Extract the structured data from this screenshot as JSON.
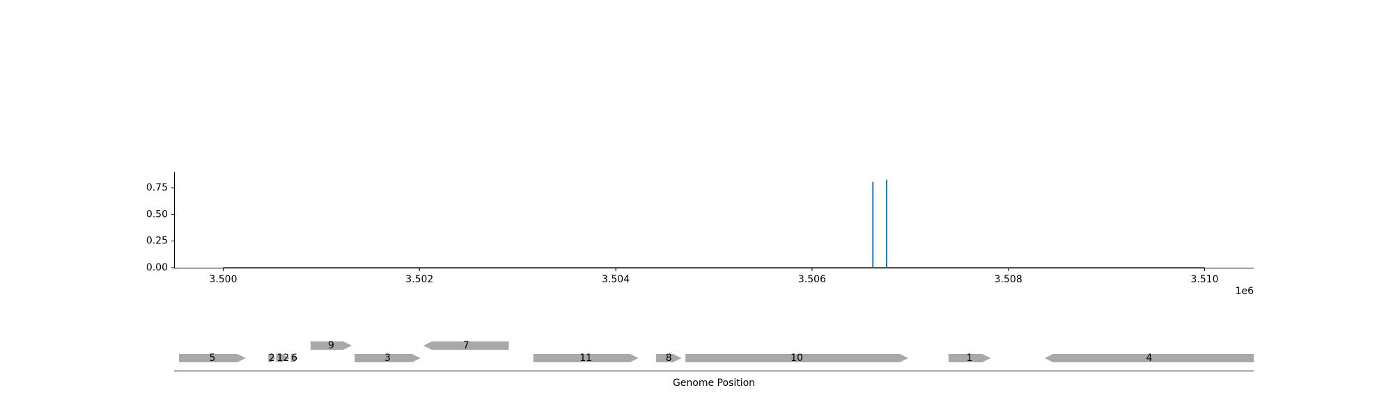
{
  "chart_data": [
    {
      "type": "line",
      "title": "",
      "xlabel": "",
      "ylabel": "",
      "x_offset_label": "1e6",
      "xlim": [
        3499500,
        3510500
      ],
      "ylim": [
        0,
        0.9
      ],
      "x_ticks": [
        3500000,
        3502000,
        3504000,
        3506000,
        3508000,
        3510000
      ],
      "x_tick_labels": [
        "3.500",
        "3.502",
        "3.504",
        "3.506",
        "3.508",
        "3.510"
      ],
      "y_ticks": [
        0,
        0.25,
        0.5,
        0.75
      ],
      "y_tick_labels": [
        "0.00",
        "0.25",
        "0.50",
        "0.75"
      ],
      "grid": false,
      "series": [
        {
          "color": "#1f77b4",
          "x": [
            3500000,
            3506620,
            3506620,
            3506620,
            3506620,
            3506760,
            3506760,
            3506760,
            3506760,
            3510000
          ],
          "y": [
            0,
            0,
            0.8,
            0.8,
            0,
            0,
            0.82,
            0.82,
            0,
            0
          ]
        }
      ]
    },
    {
      "type": "gene_map",
      "xlabel": "Genome Position",
      "xlim": [
        3499500,
        3510500
      ],
      "feature_color": "#a9a9a9",
      "features": [
        {
          "label": "5",
          "start": 3499550,
          "end": 3500230,
          "strand": 1,
          "row": 0
        },
        {
          "label": "2",
          "start": 3500460,
          "end": 3500530,
          "strand": 1,
          "row": 0
        },
        {
          "label": "12",
          "start": 3500540,
          "end": 3500680,
          "strand": 1,
          "row": 0
        },
        {
          "label": "6",
          "start": 3500690,
          "end": 3500760,
          "strand": 1,
          "row": 0
        },
        {
          "label": "9",
          "start": 3500890,
          "end": 3501310,
          "strand": 1,
          "row": 1
        },
        {
          "label": "3",
          "start": 3501340,
          "end": 3502010,
          "strand": 1,
          "row": 0
        },
        {
          "label": "7",
          "start": 3502040,
          "end": 3502910,
          "strand": -1,
          "row": 1
        },
        {
          "label": "11",
          "start": 3503160,
          "end": 3504230,
          "strand": 1,
          "row": 0
        },
        {
          "label": "8",
          "start": 3504410,
          "end": 3504670,
          "strand": 1,
          "row": 0
        },
        {
          "label": "10",
          "start": 3504710,
          "end": 3506980,
          "strand": 1,
          "row": 0
        },
        {
          "label": "1",
          "start": 3507390,
          "end": 3507820,
          "strand": 1,
          "row": 0
        },
        {
          "label": "4",
          "start": 3508370,
          "end": 3510500,
          "strand": -1,
          "row": 0
        }
      ]
    }
  ]
}
